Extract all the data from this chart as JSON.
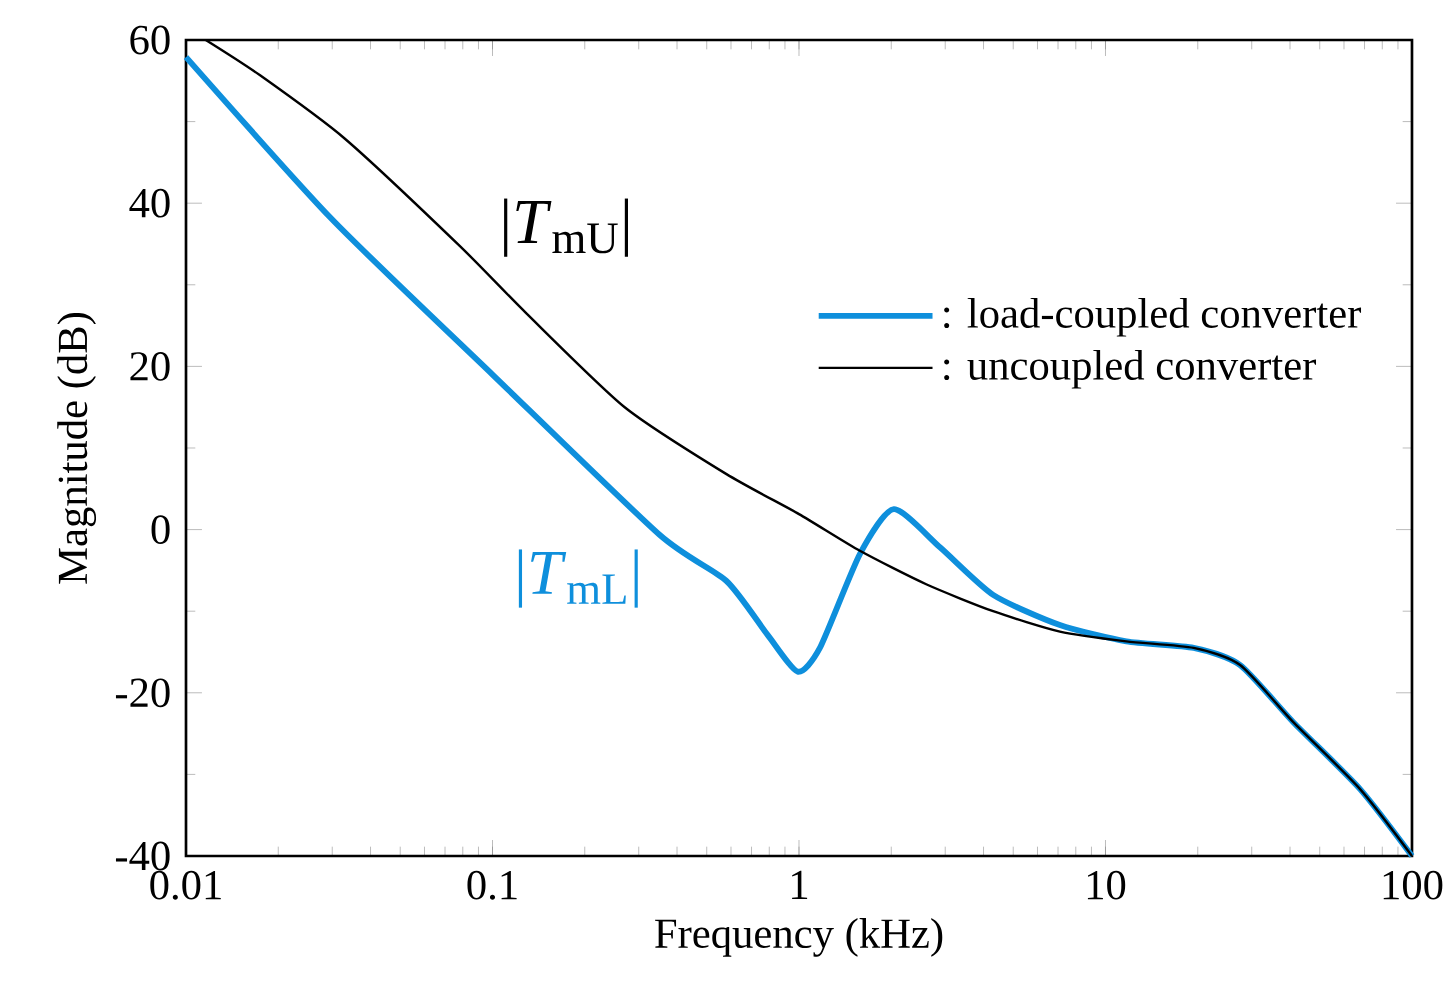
{
  "chart_data": {
    "type": "line",
    "xlabel": "Frequency (kHz)",
    "ylabel": "Magnitude (dB)",
    "log": "x",
    "xlim": [
      0.01,
      100
    ],
    "ylim": [
      -40,
      60
    ],
    "xticks": [
      0.01,
      0.1,
      1,
      10,
      100
    ],
    "yticks": [
      -40,
      -20,
      0,
      20,
      40,
      60
    ],
    "grid": false,
    "legend": "right",
    "marker": "none",
    "line_style": "solid",
    "series": [
      {
        "name": ": load-coupled converter",
        "color": "#0e8fdc",
        "x": [
          0.01,
          0.03,
          0.1,
          0.35,
          0.58,
          0.79,
          0.99,
          1.17,
          1.58,
          2.04,
          2.89,
          4.3,
          7.1,
          11.7,
          19.4,
          27.5,
          41,
          67.7,
          100
        ],
        "values": [
          57.9,
          38,
          19,
          -0.6,
          -6.3,
          -12.9,
          -17.4,
          -14.5,
          -3,
          2.5,
          -2.2,
          -8,
          -11.7,
          -13.7,
          -14.5,
          -16.6,
          -23.6,
          -31.8,
          -40
        ]
      },
      {
        "name": ": uncoupled converter",
        "color": "#000000",
        "x": [
          0.0116,
          0.0174,
          0.033,
          0.078,
          0.129,
          0.27,
          0.58,
          1,
          1.58,
          2.6,
          4.3,
          7.1,
          11.7,
          19.4,
          27.5,
          41,
          67.7,
          100
        ],
        "values": [
          60,
          55.7,
          47.9,
          34.8,
          26.5,
          15,
          6.8,
          1.9,
          -2.6,
          -6.7,
          -10,
          -12.5,
          -13.7,
          -14.5,
          -16.6,
          -23.6,
          -31.8,
          -40
        ]
      }
    ],
    "annotations": [
      "|*T*$_{mL}$|",
      "|*T*$_{mU}$|"
    ]
  }
}
